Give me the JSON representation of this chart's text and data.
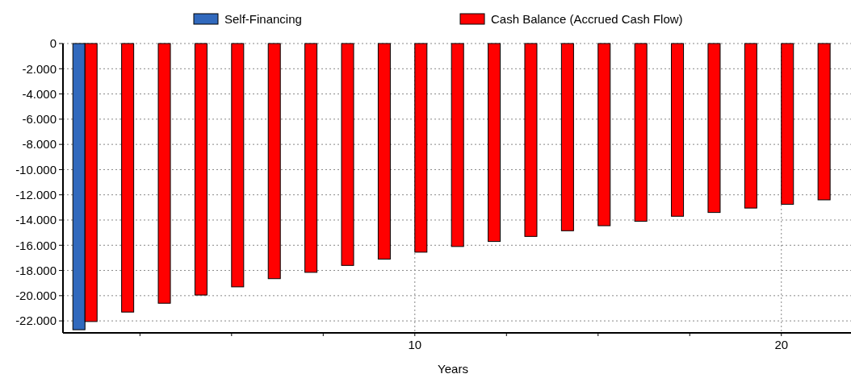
{
  "chart_data": {
    "type": "bar",
    "xlabel": "Years",
    "x": [
      1,
      2,
      3,
      4,
      5,
      6,
      7,
      8,
      9,
      10,
      11,
      12,
      13,
      14,
      15,
      16,
      17,
      18,
      19,
      20,
      21
    ],
    "series": [
      {
        "name": "Self-Financing",
        "color": "#3169bd",
        "values": [
          -22700,
          0,
          0,
          0,
          0,
          0,
          0,
          0,
          0,
          0,
          0,
          0,
          0,
          0,
          0,
          0,
          0,
          0,
          0,
          0,
          0
        ]
      },
      {
        "name": "Cash Balance (Accrued Cash Flow)",
        "color": "#ff0000",
        "values": [
          -22050,
          -21300,
          -20600,
          -19950,
          -19300,
          -18650,
          -18150,
          -17600,
          -17100,
          -16550,
          -16100,
          -15700,
          -15300,
          -14850,
          -14450,
          -14100,
          -13700,
          -13400,
          -13050,
          -12750,
          -12400
        ]
      }
    ],
    "xlim": [
      0.4,
      21.9
    ],
    "xticks": [
      {
        "value": 2.5,
        "label": null
      },
      {
        "value": 5,
        "label": null
      },
      {
        "value": 7.5,
        "label": null
      },
      10,
      {
        "value": 12.5,
        "label": null
      },
      {
        "value": 15,
        "label": null
      },
      {
        "value": 17.5,
        "label": null
      },
      20
    ],
    "ylim": [
      -22950,
      0
    ],
    "yticks": [
      0,
      {
        "value": -2000,
        "label": "-2.000"
      },
      {
        "value": -4000,
        "label": "-4.000"
      },
      {
        "value": -6000,
        "label": "-6.000"
      },
      {
        "value": -8000,
        "label": "-8.000"
      },
      {
        "value": -10000,
        "label": "-10.000"
      },
      {
        "value": -12000,
        "label": "-12.000"
      },
      {
        "value": -14000,
        "label": "-14.000"
      },
      {
        "value": -16000,
        "label": "-16.000"
      },
      {
        "value": -18000,
        "label": "-18.000"
      },
      {
        "value": -20000,
        "label": "-20.000"
      },
      {
        "value": -22000,
        "label": "-22.000"
      }
    ],
    "grid": true,
    "legend": "top"
  }
}
